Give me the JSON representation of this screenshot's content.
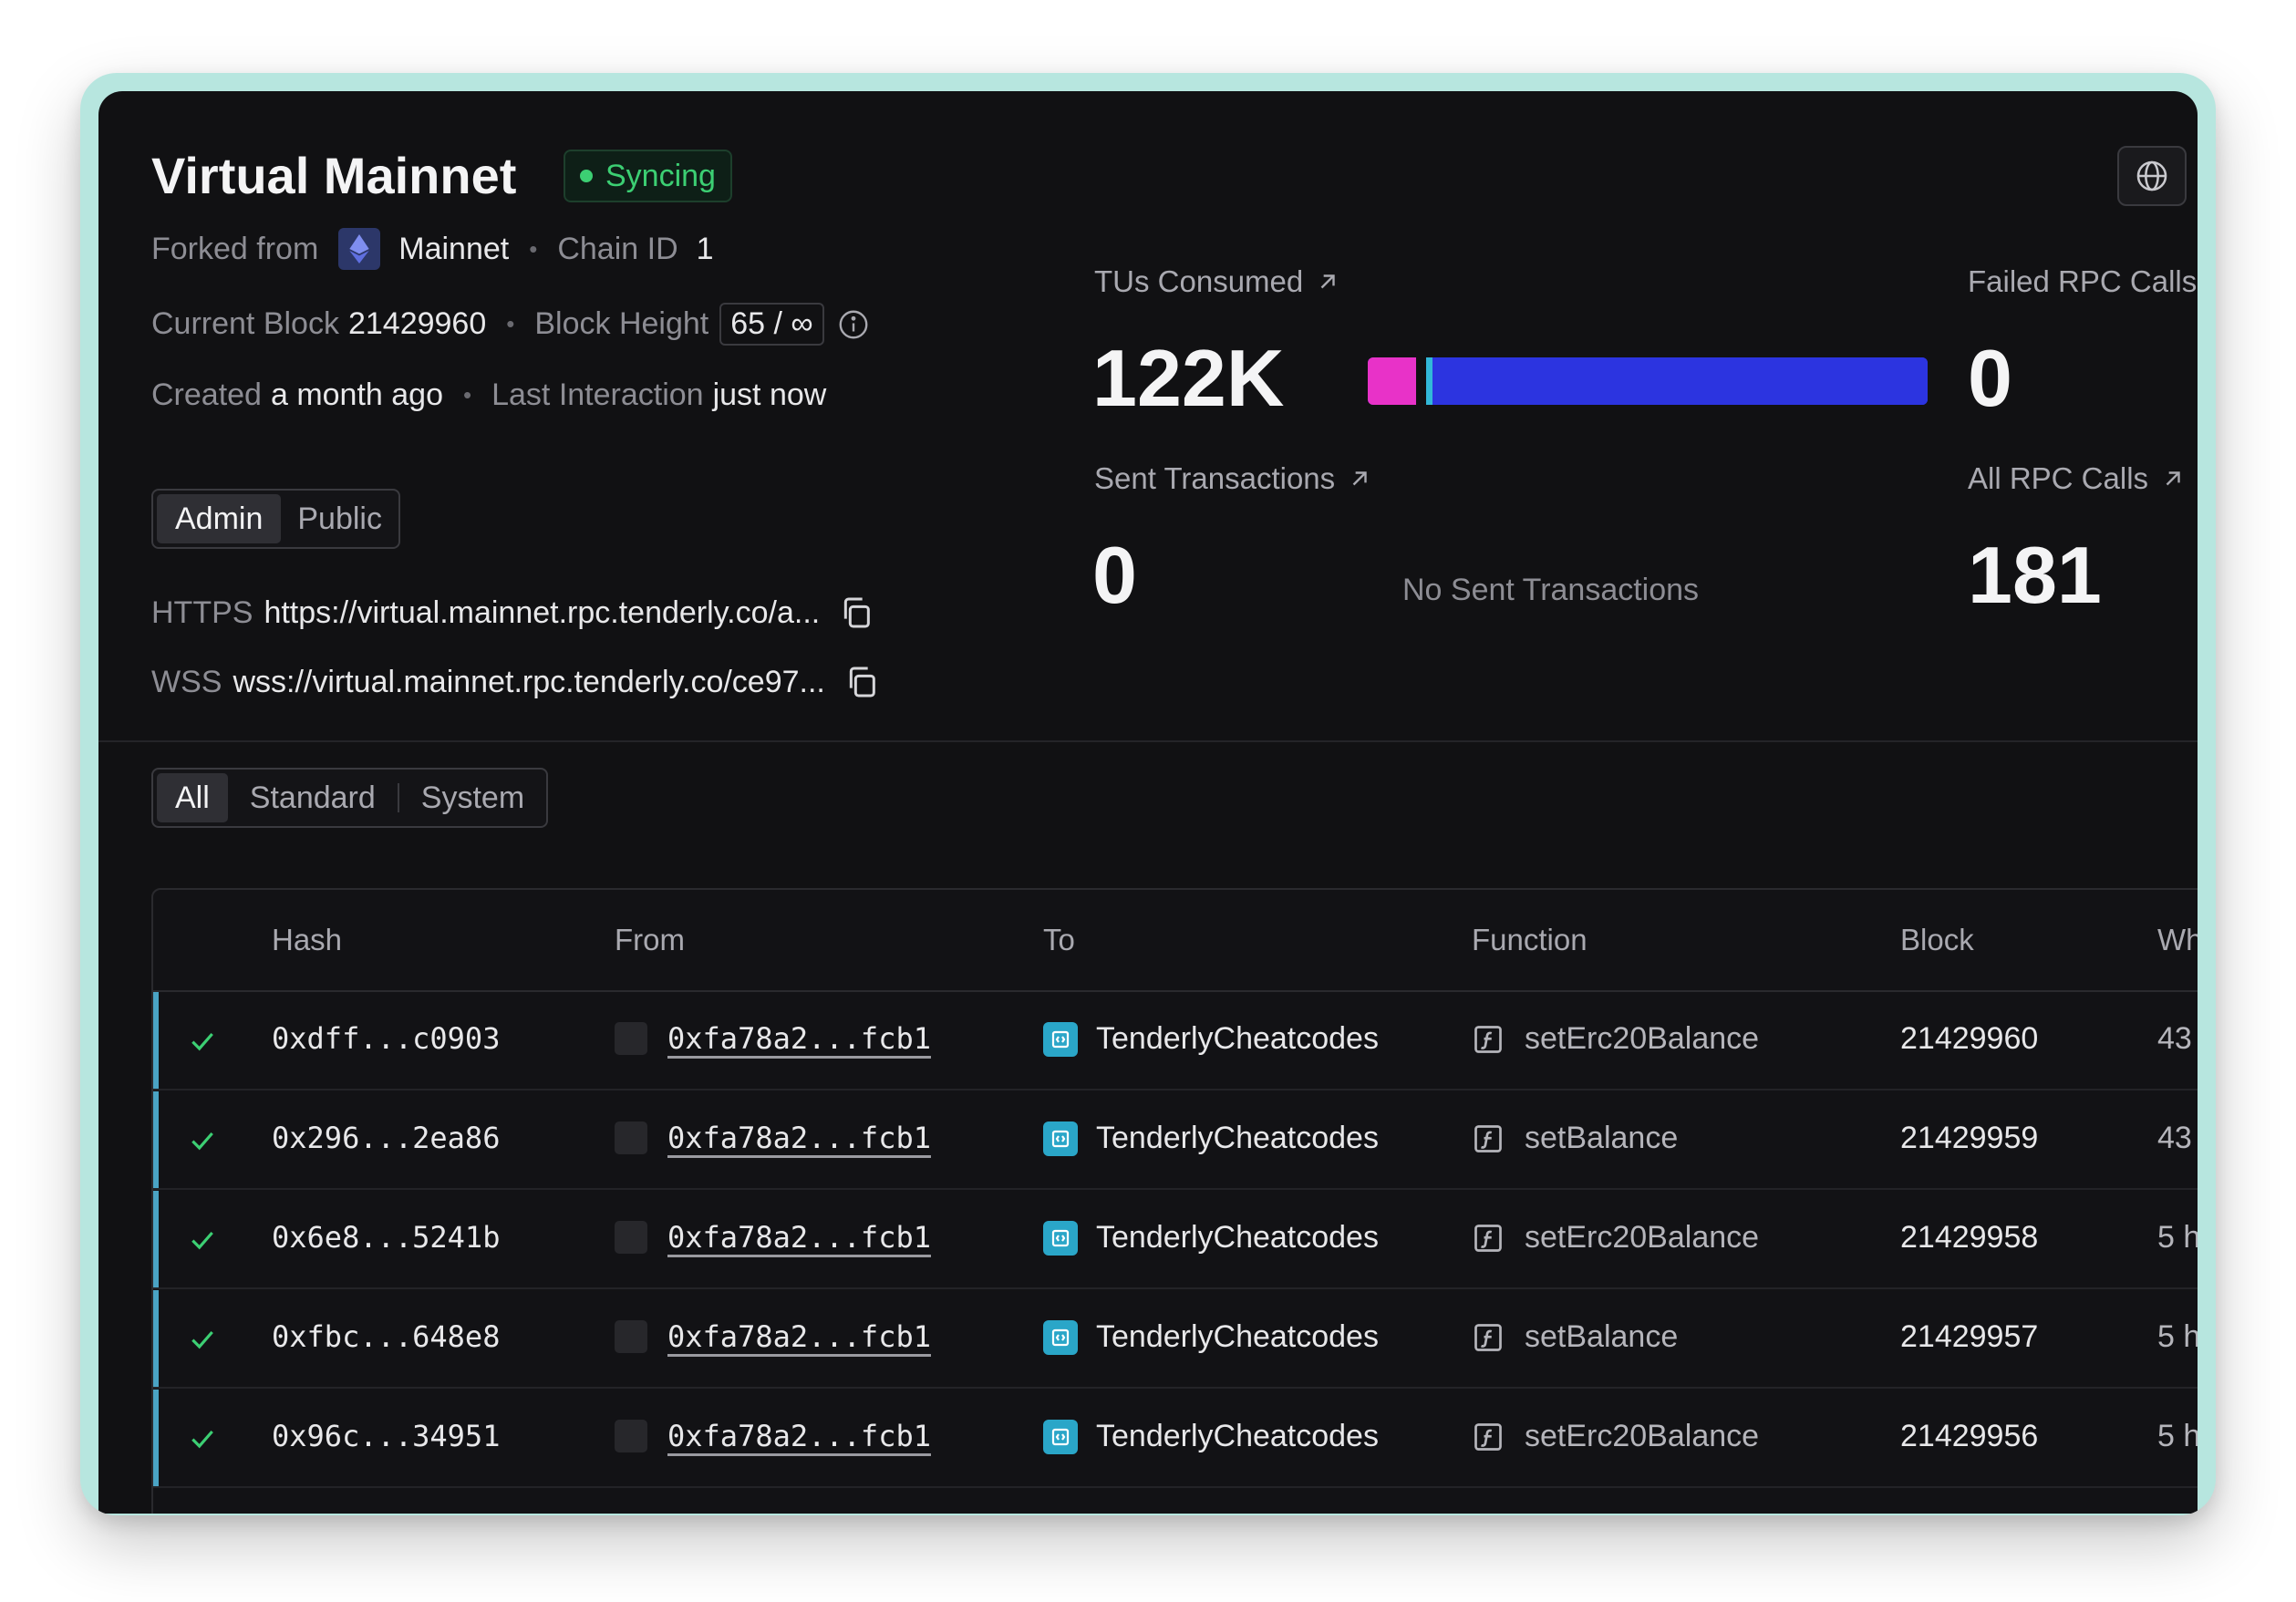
{
  "header": {
    "title": "Virtual Mainnet",
    "status": "Syncing",
    "status_color": "#3ccf73"
  },
  "meta": {
    "forked_label": "Forked from",
    "forked_value": "Mainnet",
    "chain_label": "Chain ID",
    "chain_value": "1",
    "block_label": "Current Block",
    "block_value": "21429960",
    "height_label": "Block Height",
    "height_value": "65 / ∞",
    "created_label": "Created",
    "created_value": "a month ago",
    "last_label": "Last Interaction",
    "last_value": "just now"
  },
  "access": {
    "admin": "Admin",
    "public": "Public"
  },
  "rpc": {
    "https_label": "HTTPS",
    "https_value": "https://virtual.mainnet.rpc.tenderly.co/a...",
    "wss_label": "WSS",
    "wss_value": "wss://virtual.mainnet.rpc.tenderly.co/ce97..."
  },
  "stats": {
    "tus_label": "TUs Consumed",
    "tus_value": "122K",
    "failed_label": "Failed RPC Calls",
    "failed_value": "0",
    "sent_label": "Sent Transactions",
    "sent_value": "0",
    "no_sent": "No Sent Transactions",
    "all_label": "All RPC Calls",
    "all_value": "181",
    "bar_segments": [
      {
        "fraction": 0.087,
        "color": "#e832c8"
      },
      {
        "fraction": 0.018,
        "color": "#111113"
      },
      {
        "fraction": 0.01,
        "color": "#32b8d8"
      },
      {
        "fraction": 0.885,
        "color": "#2c34e0"
      }
    ]
  },
  "filters": {
    "all": "All",
    "standard": "Standard",
    "system": "System"
  },
  "table": {
    "columns": {
      "hash": "Hash",
      "from": "From",
      "to": "To",
      "function": "Function",
      "block": "Block",
      "when": "Wh"
    },
    "rows": [
      {
        "hash": "0xdff...c0903",
        "from": "0xfa78a2...fcb1",
        "to": "TenderlyCheatcodes",
        "function": "setErc20Balance",
        "block": "21429960",
        "when": "43"
      },
      {
        "hash": "0x296...2ea86",
        "from": "0xfa78a2...fcb1",
        "to": "TenderlyCheatcodes",
        "function": "setBalance",
        "block": "21429959",
        "when": "43"
      },
      {
        "hash": "0x6e8...5241b",
        "from": "0xfa78a2...fcb1",
        "to": "TenderlyCheatcodes",
        "function": "setErc20Balance",
        "block": "21429958",
        "when": "5 h"
      },
      {
        "hash": "0xfbc...648e8",
        "from": "0xfa78a2...fcb1",
        "to": "TenderlyCheatcodes",
        "function": "setBalance",
        "block": "21429957",
        "when": "5 h"
      },
      {
        "hash": "0x96c...34951",
        "from": "0xfa78a2...fcb1",
        "to": "TenderlyCheatcodes",
        "function": "setErc20Balance",
        "block": "21429956",
        "when": "5 h"
      }
    ]
  },
  "icons": [
    "ethereum-icon",
    "info-icon",
    "copy-icon",
    "globe-icon",
    "arrow-up-right-icon",
    "check-icon",
    "contract-icon",
    "function-icon"
  ]
}
